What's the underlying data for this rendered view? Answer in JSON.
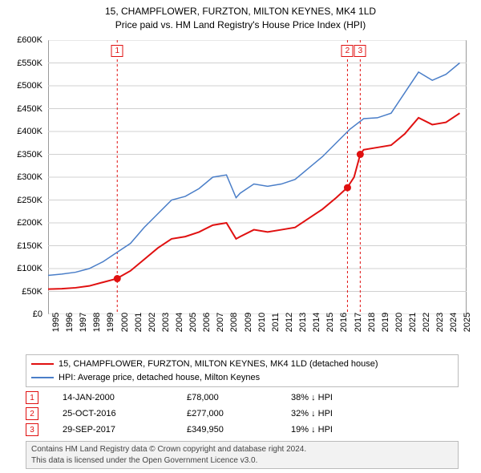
{
  "title": {
    "line1": "15, CHAMPFLOWER, FURZTON, MILTON KEYNES, MK4 1LD",
    "line2": "Price paid vs. HM Land Registry's House Price Index (HPI)",
    "fontsize": 12
  },
  "chart": {
    "type": "line",
    "background_color": "#ffffff",
    "grid_color": "#d0d0d0",
    "border_color": "#333333",
    "ylim": [
      0,
      600000
    ],
    "ytick_step": 50000,
    "y_tick_labels": [
      "£0",
      "£50K",
      "£100K",
      "£150K",
      "£200K",
      "£250K",
      "£300K",
      "£350K",
      "£400K",
      "£450K",
      "£500K",
      "£550K",
      "£600K"
    ],
    "xlim": [
      1995,
      2025.5
    ],
    "x_ticks": [
      1995,
      1996,
      1997,
      1998,
      1999,
      2000,
      2001,
      2002,
      2003,
      2004,
      2005,
      2006,
      2007,
      2008,
      2009,
      2010,
      2011,
      2012,
      2013,
      2014,
      2015,
      2016,
      2017,
      2018,
      2019,
      2020,
      2021,
      2022,
      2023,
      2024,
      2025
    ],
    "series": [
      {
        "name": "price_paid",
        "color": "#e01010",
        "line_width": 2,
        "points": [
          [
            1995,
            55000
          ],
          [
            1996,
            56000
          ],
          [
            1997,
            58000
          ],
          [
            1998,
            62000
          ],
          [
            1999,
            70000
          ],
          [
            2000,
            78000
          ],
          [
            2001,
            95000
          ],
          [
            2002,
            120000
          ],
          [
            2003,
            145000
          ],
          [
            2004,
            165000
          ],
          [
            2005,
            170000
          ],
          [
            2006,
            180000
          ],
          [
            2007,
            195000
          ],
          [
            2008,
            200000
          ],
          [
            2008.7,
            165000
          ],
          [
            2009,
            170000
          ],
          [
            2010,
            185000
          ],
          [
            2011,
            180000
          ],
          [
            2012,
            185000
          ],
          [
            2013,
            190000
          ],
          [
            2014,
            210000
          ],
          [
            2015,
            230000
          ],
          [
            2016,
            255000
          ],
          [
            2016.8,
            277000
          ],
          [
            2017.3,
            300000
          ],
          [
            2017.75,
            349950
          ],
          [
            2018,
            360000
          ],
          [
            2019,
            365000
          ],
          [
            2020,
            370000
          ],
          [
            2021,
            395000
          ],
          [
            2022,
            430000
          ],
          [
            2023,
            415000
          ],
          [
            2024,
            420000
          ],
          [
            2025,
            440000
          ]
        ]
      },
      {
        "name": "hpi",
        "color": "#4a7ec8",
        "line_width": 1.5,
        "points": [
          [
            1995,
            85000
          ],
          [
            1996,
            88000
          ],
          [
            1997,
            92000
          ],
          [
            1998,
            100000
          ],
          [
            1999,
            115000
          ],
          [
            2000,
            135000
          ],
          [
            2001,
            155000
          ],
          [
            2002,
            190000
          ],
          [
            2003,
            220000
          ],
          [
            2004,
            250000
          ],
          [
            2005,
            258000
          ],
          [
            2006,
            275000
          ],
          [
            2007,
            300000
          ],
          [
            2008,
            305000
          ],
          [
            2008.7,
            255000
          ],
          [
            2009,
            265000
          ],
          [
            2010,
            285000
          ],
          [
            2011,
            280000
          ],
          [
            2012,
            285000
          ],
          [
            2013,
            295000
          ],
          [
            2014,
            320000
          ],
          [
            2015,
            345000
          ],
          [
            2016,
            375000
          ],
          [
            2017,
            405000
          ],
          [
            2018,
            428000
          ],
          [
            2019,
            430000
          ],
          [
            2020,
            440000
          ],
          [
            2021,
            485000
          ],
          [
            2022,
            530000
          ],
          [
            2023,
            512000
          ],
          [
            2024,
            525000
          ],
          [
            2025,
            550000
          ]
        ]
      }
    ],
    "sale_markers": [
      {
        "n": "1",
        "x": 2000.04,
        "y": 78000,
        "color": "#e01010"
      },
      {
        "n": "2",
        "x": 2016.82,
        "y": 277000,
        "color": "#e01010"
      },
      {
        "n": "3",
        "x": 2017.75,
        "y": 349950,
        "color": "#e01010"
      }
    ],
    "marker_dash_color": "#e01010"
  },
  "legend": {
    "items": [
      {
        "color": "#e01010",
        "label": "15, CHAMPFLOWER, FURZTON, MILTON KEYNES, MK4 1LD (detached house)"
      },
      {
        "color": "#4a7ec8",
        "label": "HPI: Average price, detached house, Milton Keynes"
      }
    ]
  },
  "sales": [
    {
      "n": "1",
      "date": "14-JAN-2000",
      "price": "£78,000",
      "pct": "38% ↓ HPI",
      "color": "#e01010"
    },
    {
      "n": "2",
      "date": "25-OCT-2016",
      "price": "£277,000",
      "pct": "32% ↓ HPI",
      "color": "#e01010"
    },
    {
      "n": "3",
      "date": "29-SEP-2017",
      "price": "£349,950",
      "pct": "19% ↓ HPI",
      "color": "#e01010"
    }
  ],
  "footer": {
    "line1": "Contains HM Land Registry data © Crown copyright and database right 2024.",
    "line2": "This data is licensed under the Open Government Licence v3.0."
  }
}
